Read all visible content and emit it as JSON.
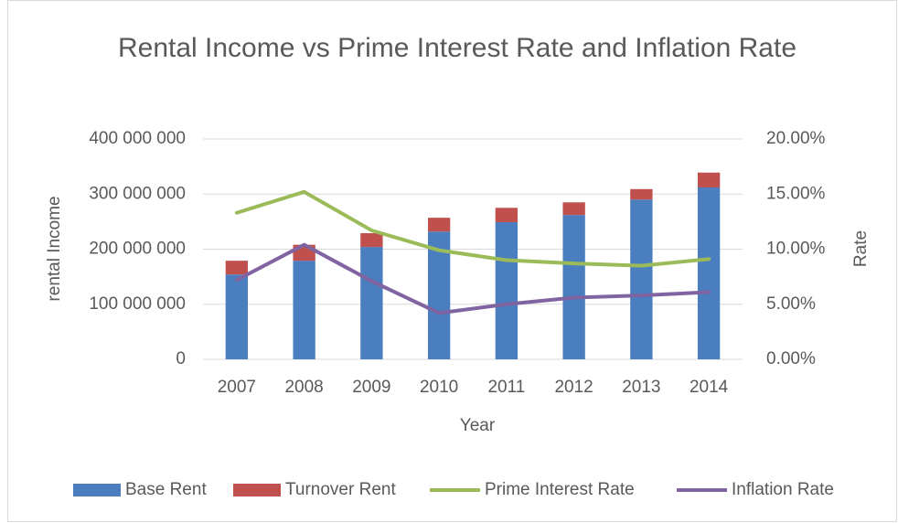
{
  "chart_data": {
    "type": "bar",
    "title": "Rental Income vs Prime Interest Rate and Inflation Rate",
    "x_label": "Year",
    "y_label": "rental Income",
    "y2_label": "Rate",
    "categories": [
      "2007",
      "2008",
      "2009",
      "2010",
      "2011",
      "2012",
      "2013",
      "2014"
    ],
    "series": [
      {
        "name": "Base Rent",
        "type": "bar",
        "stacked": true,
        "color": "#4a7ebf",
        "values": [
          154000000,
          179000000,
          204000000,
          232000000,
          249000000,
          262000000,
          290000000,
          312000000
        ]
      },
      {
        "name": "Turnover Rent",
        "type": "bar",
        "stacked": true,
        "color": "#c0504d",
        "values": [
          25000000,
          29000000,
          25000000,
          25000000,
          26000000,
          23000000,
          19000000,
          27000000
        ]
      },
      {
        "name": "Prime Interest Rate",
        "type": "line",
        "axis": "y2",
        "color": "#9bbb59",
        "values": [
          13.3,
          15.2,
          11.7,
          9.9,
          9.0,
          8.7,
          8.5,
          9.1
        ]
      },
      {
        "name": "Inflation Rate",
        "type": "line",
        "axis": "y2",
        "color": "#8064a2",
        "values": [
          7.2,
          10.4,
          7.1,
          4.2,
          5.0,
          5.6,
          5.8,
          6.1
        ]
      }
    ],
    "ylim": [
      0,
      400000000
    ],
    "yticks": [
      0,
      {
        "value": 100000000,
        "label": "100 000 000"
      },
      {
        "value": 200000000,
        "label": "200 000 000"
      },
      {
        "value": 300000000,
        "label": "300 000 000"
      },
      {
        "value": 400000000,
        "label": "400 000 000"
      }
    ],
    "y2lim": [
      0,
      20
    ],
    "y2ticks": [
      {
        "value": 0,
        "label": "0.00%"
      },
      {
        "value": 5,
        "label": "5.00%"
      },
      {
        "value": 10,
        "label": "10.00%"
      },
      {
        "value": 15,
        "label": "15.00%"
      },
      {
        "value": 20,
        "label": "20.00%"
      }
    ],
    "grid": true,
    "legend": "bottom"
  }
}
